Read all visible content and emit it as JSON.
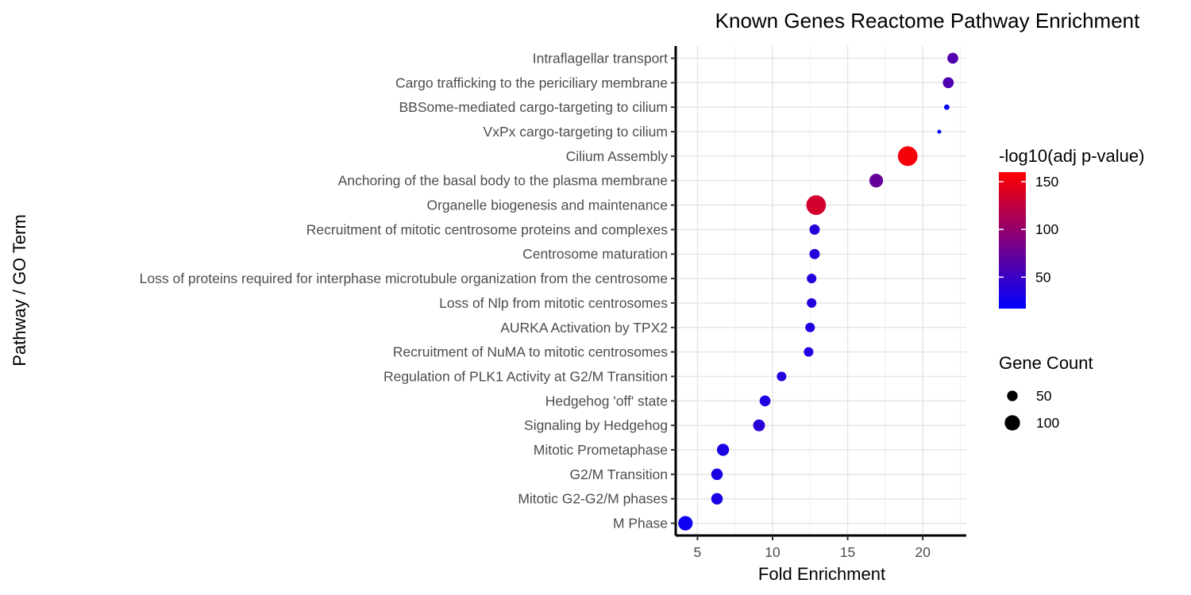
{
  "chart_data": {
    "type": "scatter",
    "title": "Known Genes Reactome Pathway Enrichment",
    "xlabel": "Fold Enrichment",
    "ylabel": "Pathway / GO Term",
    "xlim": [
      3.55,
      22.9
    ],
    "xticks": [
      5,
      10,
      15,
      20
    ],
    "grid": true,
    "categories": [
      "Intraflagellar transport",
      "Cargo trafficking to the periciliary membrane",
      "BBSome-mediated cargo-targeting to cilium",
      "VxPx cargo-targeting to cilium",
      "Cilium Assembly",
      "Anchoring of the basal body to the plasma membrane",
      "Organelle biogenesis and maintenance",
      "Recruitment of mitotic centrosome proteins and complexes",
      "Centrosome maturation",
      "Loss of proteins required for interphase microtubule organization from the centrosome",
      "Loss of Nlp from mitotic centrosomes",
      "AURKA Activation by TPX2",
      "Recruitment of NuMA to mitotic centrosomes",
      "Regulation of PLK1 Activity at G2/M Transition",
      "Hedgehog 'off' state",
      "Signaling by Hedgehog",
      "Mitotic Prometaphase",
      "G2/M Transition",
      "Mitotic G2-G2/M phases",
      "M Phase"
    ],
    "fold_enrichment": [
      22.0,
      21.7,
      21.6,
      21.1,
      19.0,
      16.9,
      12.9,
      12.8,
      12.8,
      12.6,
      12.6,
      12.5,
      12.4,
      10.6,
      9.5,
      9.1,
      6.7,
      6.3,
      6.3,
      4.2
    ],
    "neg_log10_adj_p": [
      62,
      60,
      18,
      15,
      155,
      75,
      135,
      38,
      38,
      36,
      36,
      34,
      34,
      36,
      34,
      40,
      32,
      32,
      32,
      25
    ],
    "gene_count": [
      40,
      40,
      14,
      10,
      118,
      60,
      118,
      36,
      36,
      32,
      32,
      32,
      32,
      32,
      40,
      46,
      48,
      44,
      44,
      66
    ],
    "color_scale": {
      "title": "-log10(adj p-value)",
      "low": "#0000ff",
      "high": "#ff0000",
      "range": [
        17,
        160
      ],
      "ticks": [
        50,
        100,
        150
      ]
    },
    "size_scale": {
      "title": "Gene Count",
      "range": [
        7,
        120
      ],
      "breaks": [
        50,
        100
      ]
    },
    "point_color": "#000000"
  }
}
